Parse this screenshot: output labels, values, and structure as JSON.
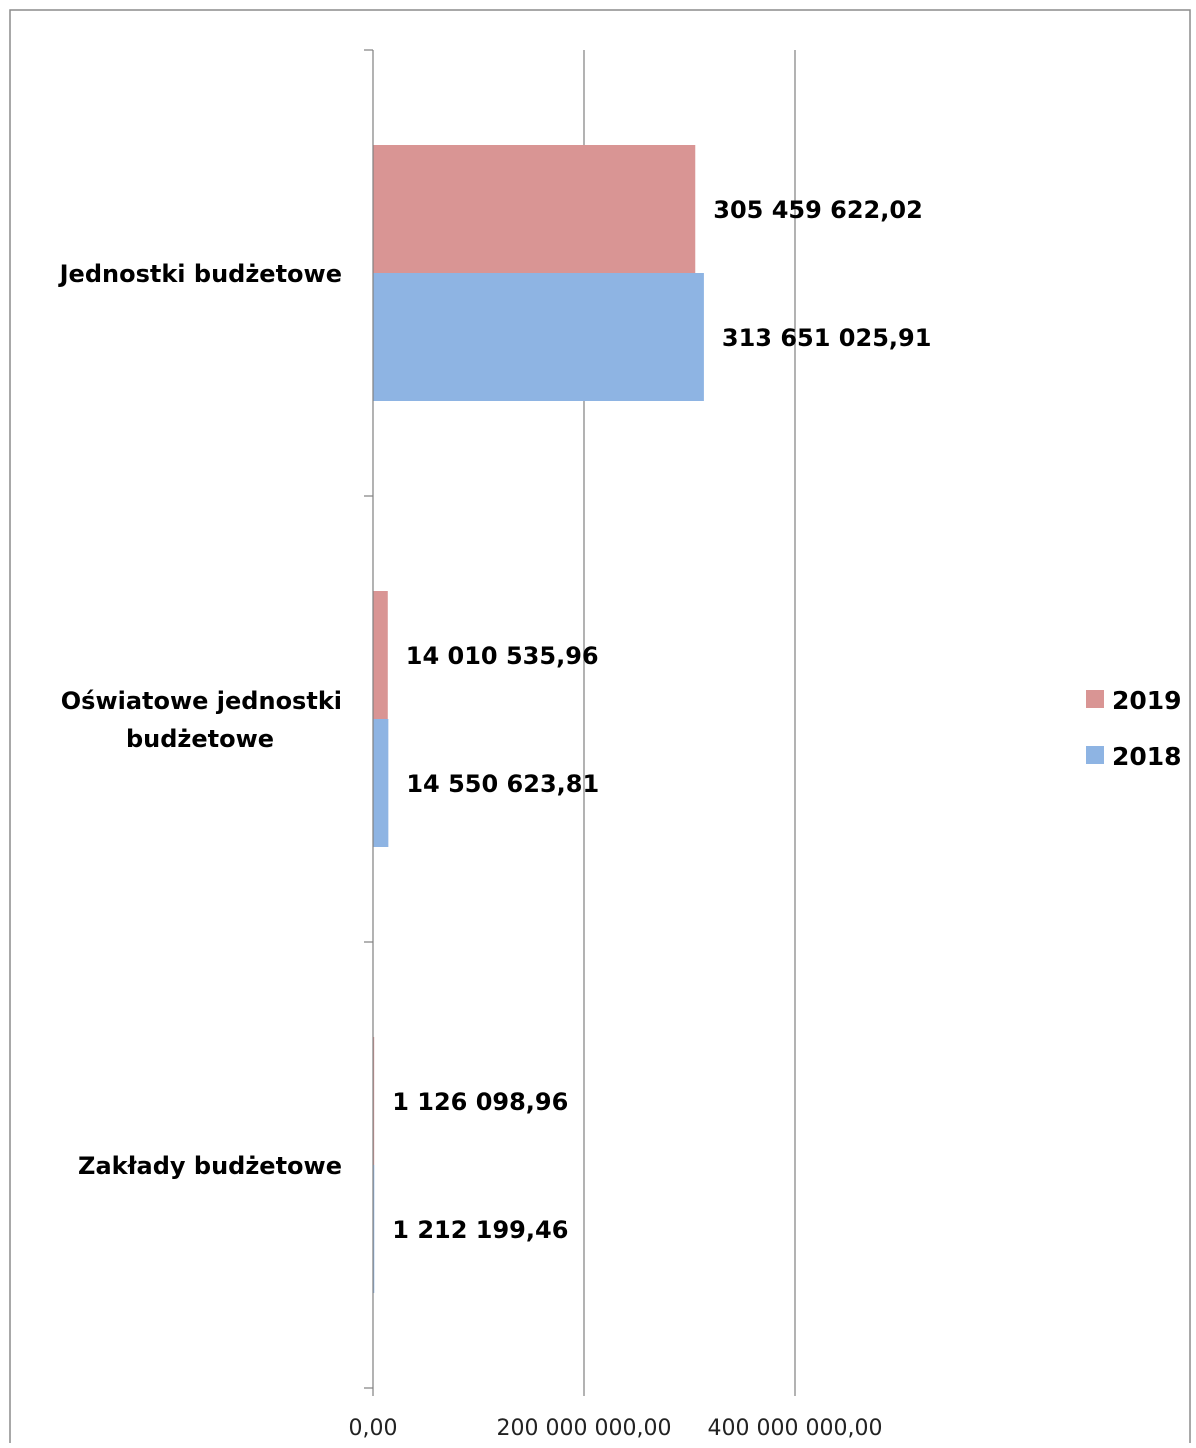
{
  "chart_data": {
    "type": "bar",
    "orientation": "horizontal",
    "title": "",
    "xlabel": "",
    "ylabel": "",
    "categories": [
      [
        "Jednostki budżetowe"
      ],
      [
        "Oświatowe jednostki",
        "budżetowe"
      ],
      [
        "Zakłady budżetowe"
      ]
    ],
    "series": [
      {
        "name": "2019",
        "color": "#d99594",
        "values": [
          305459622.02,
          14010535.96,
          1126098.96
        ],
        "labels": [
          "305 459 622,02",
          "14 010 535,96",
          "1 126 098,96"
        ]
      },
      {
        "name": "2018",
        "color": "#8eb4e3",
        "values": [
          313651025.91,
          14550623.81,
          1212199.46
        ],
        "labels": [
          "313 651 025,91",
          "14 550 623,81",
          "1 212 199,46"
        ]
      }
    ],
    "x_ticks": [
      {
        "value": 0,
        "label": "0,00"
      },
      {
        "value": 200000000,
        "label": "200 000 000,00"
      },
      {
        "value": 400000000,
        "label": "400 000 000,00"
      }
    ],
    "xlim": [
      0,
      400000000
    ],
    "grid": true,
    "legend_position": "right"
  }
}
